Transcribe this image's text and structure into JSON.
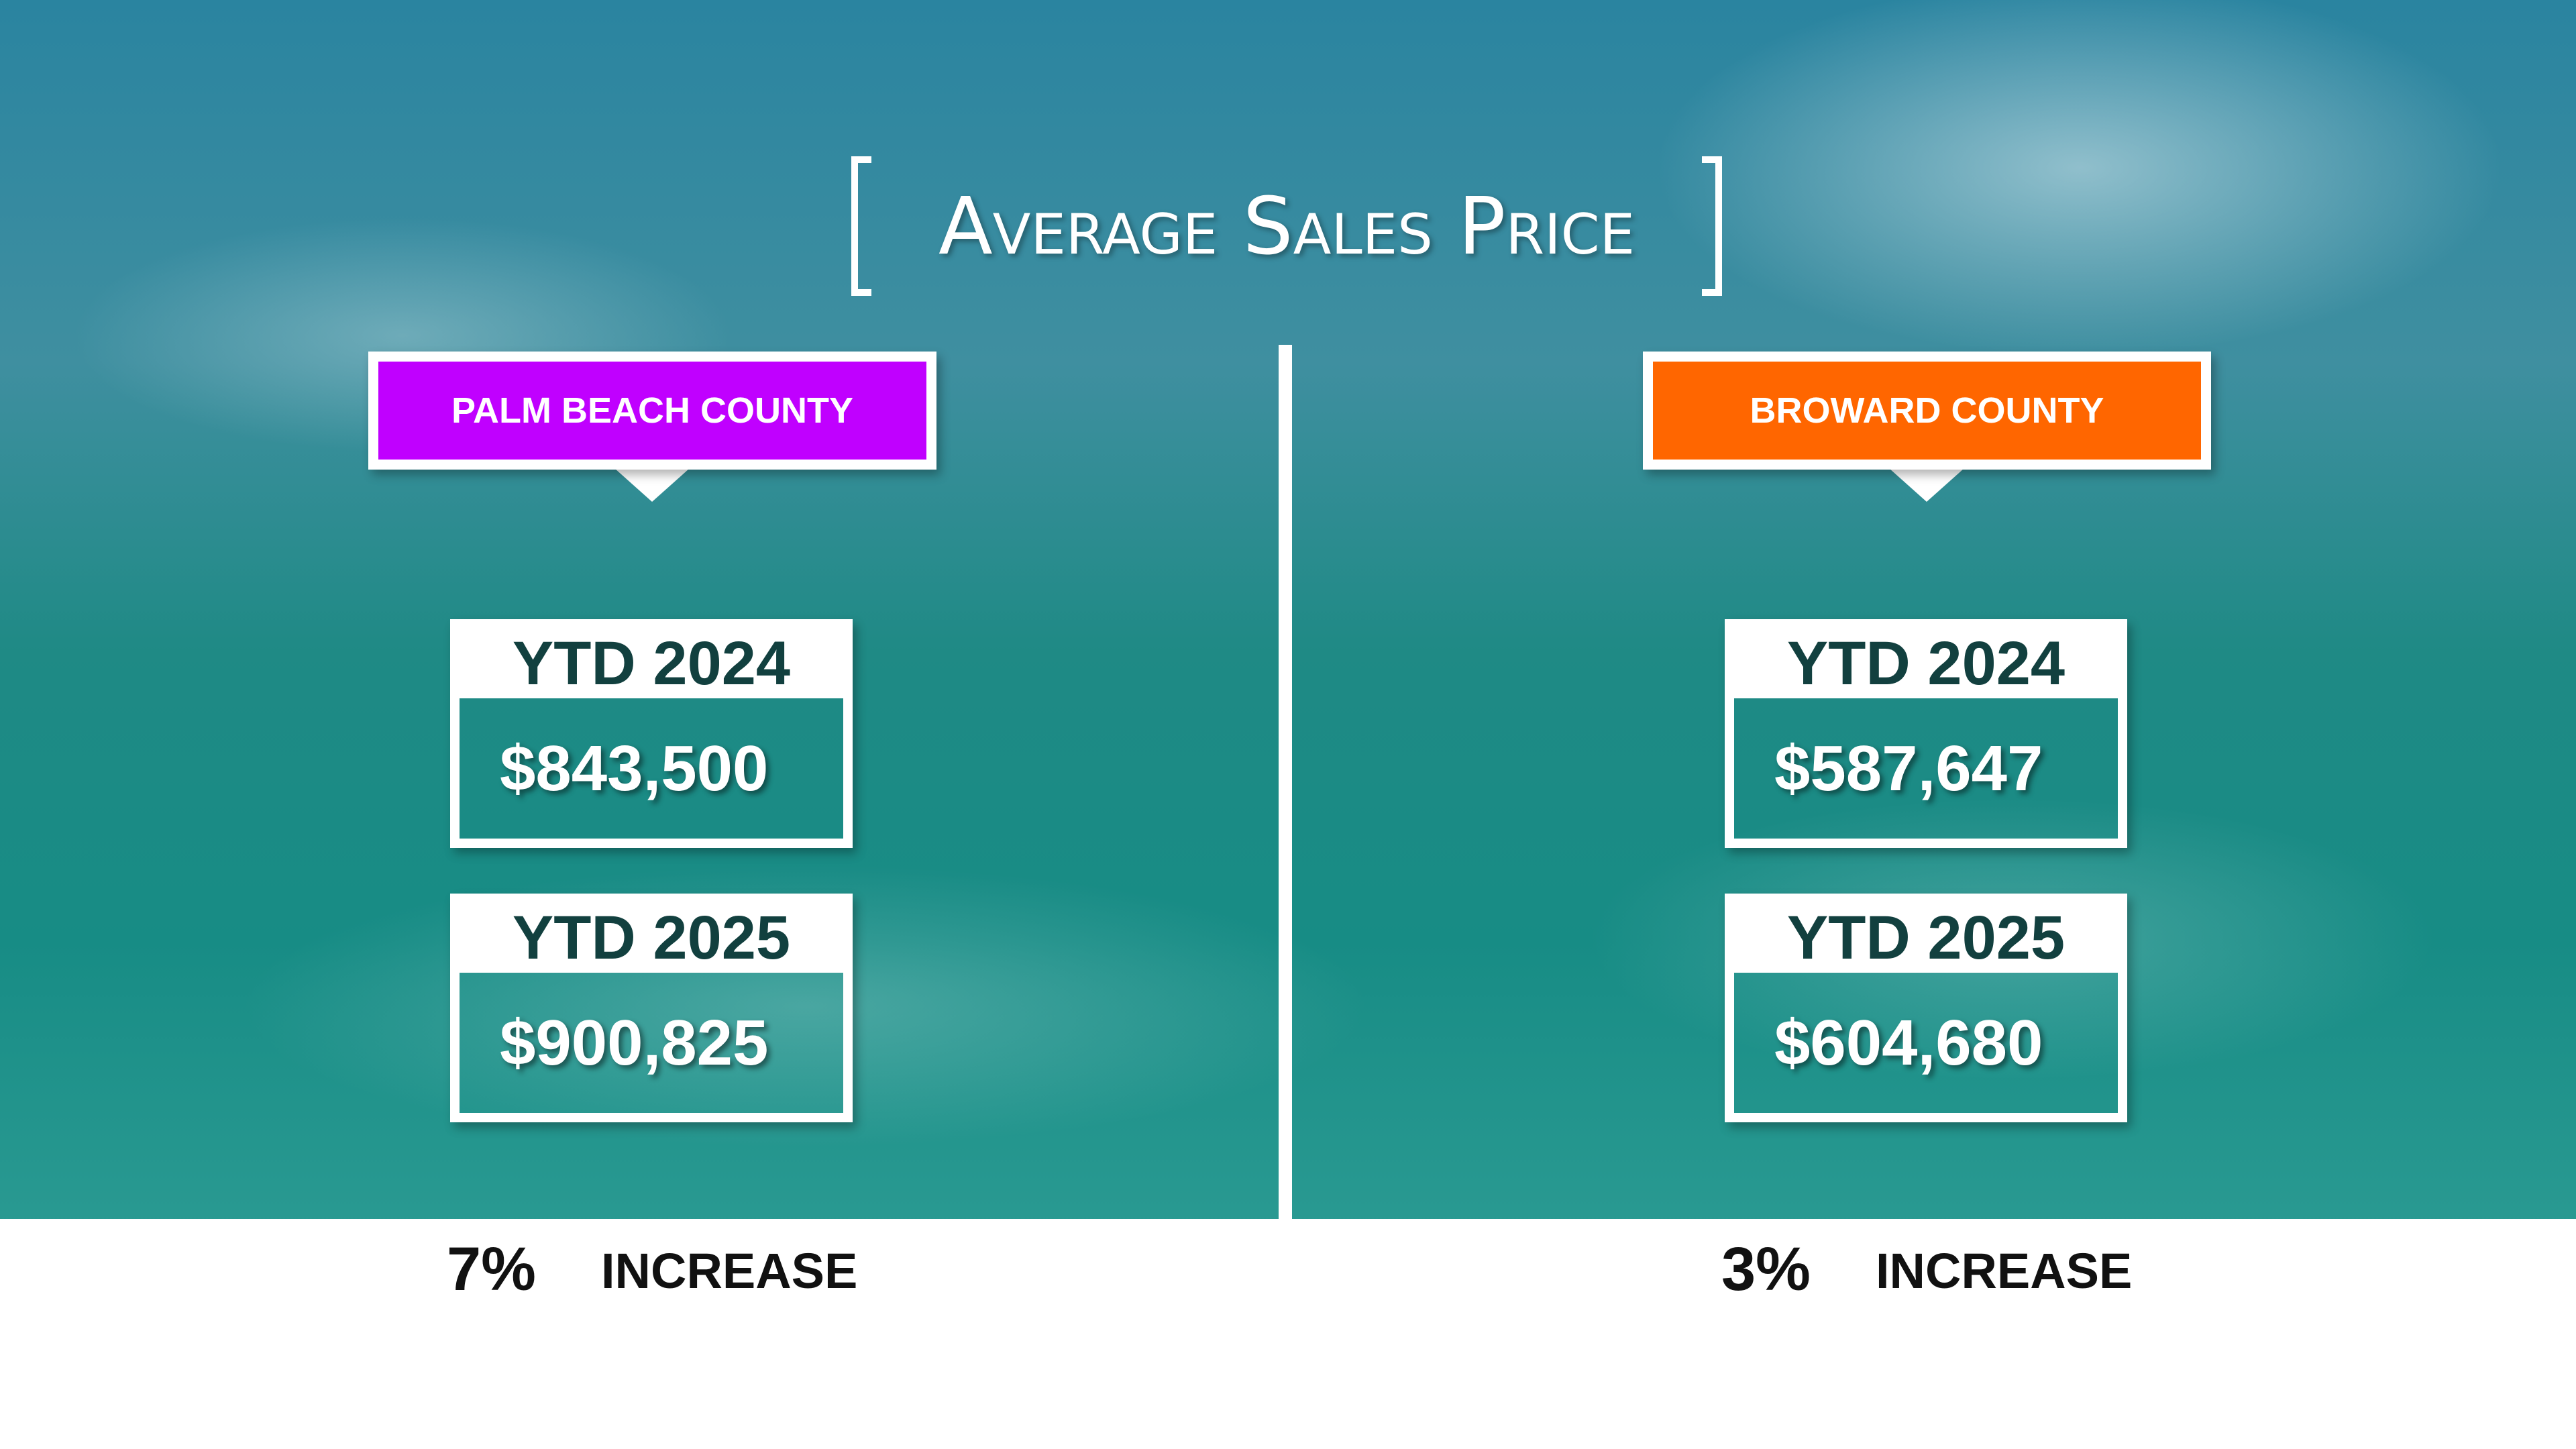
{
  "title": "Average Sales Price",
  "counties": [
    {
      "name": "PALM BEACH COUNTY",
      "color": "#c000ff",
      "rows": [
        {
          "label": "YTD 2024",
          "value": "$843,500"
        },
        {
          "label": "YTD 2025",
          "value": "$900,825"
        }
      ],
      "change": "7%",
      "change_label": "INCREASE"
    },
    {
      "name": "BROWARD COUNTY",
      "color": "#ff6600",
      "rows": [
        {
          "label": "YTD 2024",
          "value": "$587,647"
        },
        {
          "label": "YTD 2025",
          "value": "$604,680"
        }
      ],
      "change": "3%",
      "change_label": "INCREASE"
    }
  ]
}
